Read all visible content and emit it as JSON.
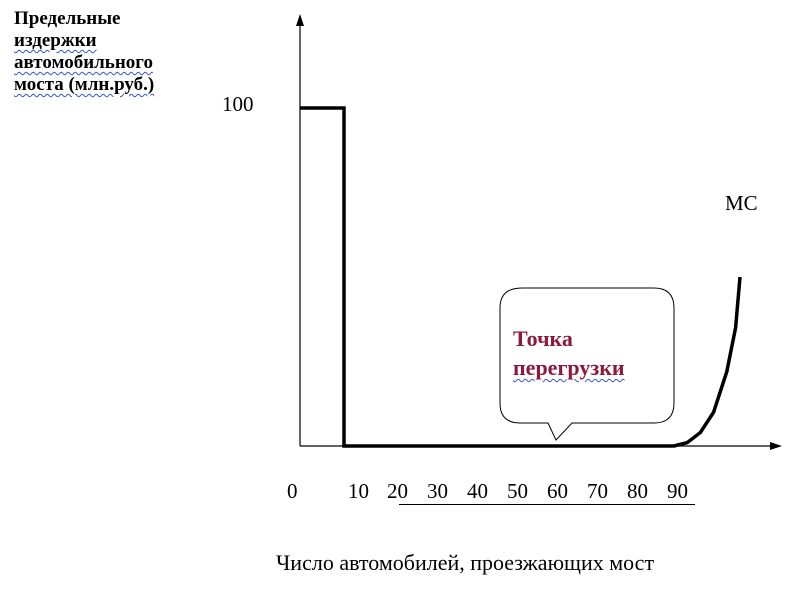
{
  "chart_data": {
    "type": "line",
    "ylabel_lines": [
      "Предельные",
      "издержки",
      "автомобильного",
      "моста (млн.руб.)"
    ],
    "xlabel": "Число автомобилей, проезжающих мост",
    "yticks": [
      "100"
    ],
    "xticks": [
      "0",
      "10",
      "20",
      "30",
      "40",
      "50",
      "60",
      "70",
      "80",
      "90"
    ],
    "series": [
      {
        "name": "MC",
        "points": [
          {
            "x": 0,
            "y": 100
          },
          {
            "x": 10,
            "y": 100
          },
          {
            "x": 10,
            "y": 0
          },
          {
            "x": 85,
            "y": 0
          },
          {
            "x": 88,
            "y": 1
          },
          {
            "x": 91,
            "y": 4
          },
          {
            "x": 94,
            "y": 10
          },
          {
            "x": 97,
            "y": 22
          },
          {
            "x": 99,
            "y": 35
          },
          {
            "x": 100,
            "y": 50
          }
        ]
      }
    ],
    "annotation": {
      "lines": [
        "Точка",
        "перегрузки"
      ],
      "x": 60,
      "y": 0
    },
    "xlim": [
      0,
      100
    ],
    "ylim": [
      0,
      100
    ],
    "grid": false,
    "legend": "none"
  }
}
